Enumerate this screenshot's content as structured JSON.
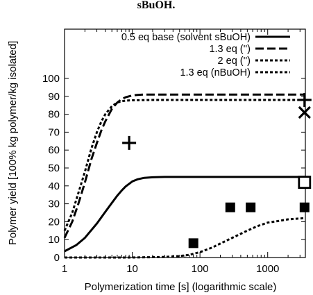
{
  "header_fragment": "sBuOH.",
  "chart_data": {
    "type": "line",
    "xlabel": "Polymerization time [s] (logarithmic scale)",
    "ylabel": "Polymer yield [100% kg polymer/kg isolated]",
    "x_scale": "log",
    "xlim": [
      1,
      3600
    ],
    "ylim": [
      0,
      100
    ],
    "x_ticks": [
      1,
      10,
      100,
      1000
    ],
    "x_tick_labels": [
      "1",
      "10",
      "100",
      "1000"
    ],
    "y_ticks": [
      0,
      10,
      20,
      30,
      40,
      50,
      60,
      70,
      80,
      90,
      100
    ],
    "y_tick_labels": [
      "0",
      "10",
      "20",
      "30",
      "40",
      "50",
      "60",
      "70",
      "80",
      "90",
      "100"
    ],
    "grid": false,
    "legend_position": "top-right",
    "series": [
      {
        "name": "0.5 eq base (solvent sBuOH)",
        "style": "solid",
        "color": "#000000",
        "x": [
          1,
          1.5,
          2,
          3,
          4,
          5,
          6,
          7,
          8,
          10,
          12,
          15,
          20,
          30,
          50,
          100,
          1000,
          3600
        ],
        "y": [
          3.5,
          7,
          11,
          19,
          25.5,
          30.5,
          34.5,
          37.5,
          39.7,
          42.5,
          43.7,
          44.5,
          44.8,
          45,
          45,
          45,
          45,
          45
        ]
      },
      {
        "name": "1.3 eq ('')",
        "style": "long-dash",
        "color": "#000000",
        "x": [
          1,
          1.3,
          1.6,
          2,
          2.5,
          3,
          3.5,
          4,
          5,
          6,
          7,
          8,
          10,
          12,
          15,
          20,
          30,
          100,
          1000,
          3600
        ],
        "y": [
          11,
          20,
          30,
          42,
          55,
          64,
          71,
          76,
          83,
          86.5,
          88.5,
          89.5,
          90.5,
          90.8,
          91,
          91,
          91,
          91,
          91,
          91
        ]
      },
      {
        "name": "2 eq ('')",
        "style": "dotted",
        "color": "#000000",
        "x": [
          1,
          1.3,
          1.6,
          2,
          2.5,
          3,
          3.5,
          4,
          5,
          6,
          7,
          8,
          10,
          20,
          100,
          1000,
          3600
        ],
        "y": [
          15,
          25,
          36,
          48,
          61,
          70,
          76,
          80,
          84.5,
          86.5,
          87.3,
          87.6,
          87.8,
          88,
          88,
          88,
          88
        ]
      },
      {
        "name": "1.3 eq (nBuOH)",
        "style": "dotted",
        "color": "#000000",
        "x": [
          1,
          10,
          30,
          50,
          70,
          100,
          150,
          200,
          300,
          500,
          700,
          1000,
          1500,
          2000,
          3600
        ],
        "y": [
          0,
          0,
          0.3,
          0.8,
          1.5,
          3,
          5.5,
          7.8,
          11,
          15,
          17.5,
          19.5,
          20.5,
          21.3,
          22
        ]
      }
    ],
    "markers": [
      {
        "symbol": "plus",
        "x": 9,
        "y": 64
      },
      {
        "symbol": "plus",
        "x": 3500,
        "y": 88
      },
      {
        "symbol": "cross",
        "x": 3500,
        "y": 81
      },
      {
        "symbol": "open-square",
        "x": 3500,
        "y": 42
      },
      {
        "symbol": "filled-square",
        "x": 80,
        "y": 8
      },
      {
        "symbol": "filled-square",
        "x": 280,
        "y": 28
      },
      {
        "symbol": "filled-square",
        "x": 560,
        "y": 28
      },
      {
        "symbol": "filled-square",
        "x": 3500,
        "y": 28
      }
    ]
  }
}
